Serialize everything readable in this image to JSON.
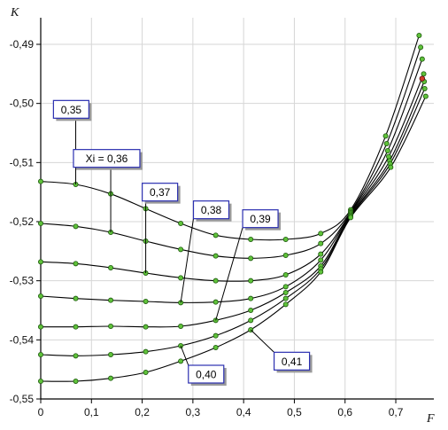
{
  "chart_data": {
    "type": "line",
    "title": "",
    "xlabel": "F",
    "ylabel": "K",
    "xlim": [
      0,
      0.775
    ],
    "ylim": [
      -0.55,
      -0.4855
    ],
    "xticks": [
      {
        "value": 0,
        "label": "0"
      },
      {
        "value": 0.1,
        "label": "0,1"
      },
      {
        "value": 0.2,
        "label": "0,2"
      },
      {
        "value": 0.3,
        "label": "0,3"
      },
      {
        "value": 0.4,
        "label": "0,4"
      },
      {
        "value": 0.5,
        "label": "0,5"
      },
      {
        "value": 0.6,
        "label": "0,6"
      },
      {
        "value": 0.7,
        "label": "0,7"
      }
    ],
    "yticks": [
      {
        "value": -0.49,
        "label": "-0,49"
      },
      {
        "value": -0.5,
        "label": "-0,50"
      },
      {
        "value": -0.51,
        "label": "-0,51"
      },
      {
        "value": -0.52,
        "label": "-0,52"
      },
      {
        "value": -0.53,
        "label": "-0,53"
      },
      {
        "value": -0.54,
        "label": "-0,54"
      },
      {
        "value": -0.55,
        "label": "-0,55"
      }
    ],
    "grid": true,
    "line_color": "#000000",
    "marker_color": "#5fc23a",
    "highlight_marker_color": "#d23a2a",
    "series": [
      {
        "label": "0,35",
        "points": [
          [
            0,
            -0.5132
          ],
          [
            0.069,
            -0.5137
          ],
          [
            0.138,
            -0.5153
          ],
          [
            0.207,
            -0.5178
          ],
          [
            0.276,
            -0.5203
          ],
          [
            0.345,
            -0.5223
          ],
          [
            0.414,
            -0.523
          ],
          [
            0.483,
            -0.523
          ],
          [
            0.552,
            -0.522
          ],
          [
            0.611,
            -0.518
          ],
          [
            0.68,
            -0.5055
          ],
          [
            0.746,
            -0.4885
          ]
        ]
      },
      {
        "label": "Xi = 0,36",
        "points": [
          [
            0,
            -0.5203
          ],
          [
            0.069,
            -0.5208
          ],
          [
            0.138,
            -0.5218
          ],
          [
            0.207,
            -0.5233
          ],
          [
            0.276,
            -0.5247
          ],
          [
            0.345,
            -0.5258
          ],
          [
            0.414,
            -0.5262
          ],
          [
            0.483,
            -0.5257
          ],
          [
            0.552,
            -0.5237
          ],
          [
            0.611,
            -0.5183
          ],
          [
            0.682,
            -0.5068
          ],
          [
            0.749,
            -0.4905
          ]
        ]
      },
      {
        "label": "0,37",
        "points": [
          [
            0,
            -0.5268
          ],
          [
            0.069,
            -0.5271
          ],
          [
            0.138,
            -0.5278
          ],
          [
            0.207,
            -0.5287
          ],
          [
            0.276,
            -0.5295
          ],
          [
            0.345,
            -0.53
          ],
          [
            0.414,
            -0.53
          ],
          [
            0.483,
            -0.529
          ],
          [
            0.552,
            -0.5255
          ],
          [
            0.611,
            -0.5185
          ],
          [
            0.684,
            -0.508
          ],
          [
            0.752,
            -0.4925
          ]
        ]
      },
      {
        "label": "0,38",
        "points": [
          [
            0,
            -0.5326
          ],
          [
            0.069,
            -0.533
          ],
          [
            0.138,
            -0.5333
          ],
          [
            0.207,
            -0.5335
          ],
          [
            0.276,
            -0.5337
          ],
          [
            0.345,
            -0.5336
          ],
          [
            0.414,
            -0.533
          ],
          [
            0.483,
            -0.531
          ],
          [
            0.552,
            -0.5265
          ],
          [
            0.611,
            -0.5187
          ],
          [
            0.686,
            -0.509
          ],
          [
            0.755,
            -0.495
          ]
        ]
      },
      {
        "label": "0,39",
        "points": [
          [
            0,
            -0.5378
          ],
          [
            0.069,
            -0.5378
          ],
          [
            0.138,
            -0.5377
          ],
          [
            0.207,
            -0.5378
          ],
          [
            0.276,
            -0.5377
          ],
          [
            0.345,
            -0.5367
          ],
          [
            0.414,
            -0.535
          ],
          [
            0.483,
            -0.532
          ],
          [
            0.552,
            -0.5275
          ],
          [
            0.611,
            -0.5189
          ],
          [
            0.688,
            -0.5097
          ],
          [
            0.756,
            -0.4963
          ]
        ]
      },
      {
        "label": "0,40",
        "points": [
          [
            0,
            -0.5425
          ],
          [
            0.069,
            -0.5427
          ],
          [
            0.138,
            -0.5425
          ],
          [
            0.207,
            -0.542
          ],
          [
            0.276,
            -0.541
          ],
          [
            0.345,
            -0.5393
          ],
          [
            0.414,
            -0.5367
          ],
          [
            0.483,
            -0.533
          ],
          [
            0.552,
            -0.528
          ],
          [
            0.611,
            -0.5191
          ],
          [
            0.689,
            -0.5102
          ],
          [
            0.757,
            -0.4975
          ]
        ]
      },
      {
        "label": "0,41",
        "points": [
          [
            0,
            -0.547
          ],
          [
            0.069,
            -0.547
          ],
          [
            0.138,
            -0.5465
          ],
          [
            0.207,
            -0.5455
          ],
          [
            0.276,
            -0.5436
          ],
          [
            0.345,
            -0.5413
          ],
          [
            0.414,
            -0.5383
          ],
          [
            0.483,
            -0.534
          ],
          [
            0.552,
            -0.5285
          ],
          [
            0.611,
            -0.5193
          ],
          [
            0.69,
            -0.5108
          ],
          [
            0.759,
            -0.4988
          ]
        ]
      }
    ],
    "highlight_point": {
      "series": "Xi = 0,36",
      "x": 0.752,
      "y": -0.4958
    },
    "label_boxes": [
      {
        "text": "0,35",
        "anchor": [
          0.069,
          -0.5137
        ],
        "box": [
          0.06,
          -0.501
        ]
      },
      {
        "text": "Xi = 0,36",
        "anchor": [
          0.138,
          -0.5218
        ],
        "box": [
          0.13,
          -0.5093
        ]
      },
      {
        "text": "0,37",
        "anchor": [
          0.207,
          -0.5287
        ],
        "box": [
          0.235,
          -0.515
        ]
      },
      {
        "text": "0,38",
        "anchor": [
          0.276,
          -0.5337
        ],
        "box": [
          0.336,
          -0.518
        ]
      },
      {
        "text": "0,39",
        "anchor": [
          0.345,
          -0.5367
        ],
        "box": [
          0.433,
          -0.5195
        ]
      },
      {
        "text": "0,40",
        "anchor": [
          0.276,
          -0.541
        ],
        "box": [
          0.326,
          -0.5458
        ]
      },
      {
        "text": "0,41",
        "anchor": [
          0.414,
          -0.5383
        ],
        "box": [
          0.495,
          -0.5436
        ]
      }
    ]
  }
}
